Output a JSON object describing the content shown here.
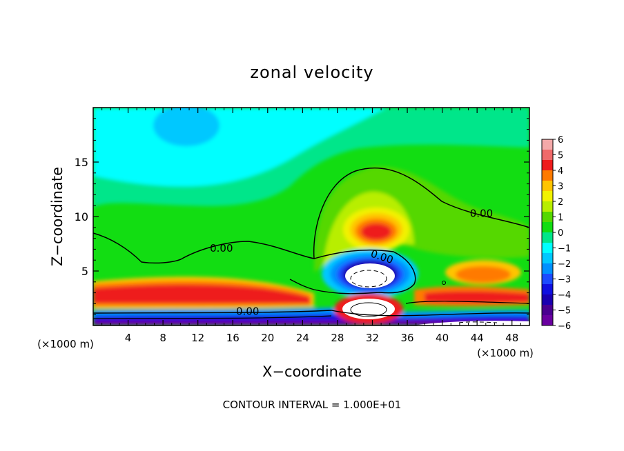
{
  "chart_data": {
    "type": "heatmap",
    "title": "zonal velocity",
    "xlabel": "X−coordinate",
    "ylabel": "Z−coordinate",
    "x_units": "(×1000 m)",
    "z_units": "(×1000 m)",
    "xlim": [
      0,
      50
    ],
    "ylim": [
      0,
      20
    ],
    "x_ticks": [
      4,
      8,
      12,
      16,
      20,
      24,
      28,
      32,
      36,
      40,
      44,
      48
    ],
    "y_ticks": [
      5,
      10,
      15
    ],
    "colorbar": {
      "levels": [
        6,
        5,
        4,
        3,
        2,
        1,
        0,
        -1,
        -2,
        -3,
        -4,
        -5,
        -6
      ],
      "labels": [
        "6",
        "5",
        "4",
        "3",
        "2",
        "1",
        "0",
        "−1",
        "−2",
        "−3",
        "−4",
        "−5",
        "−6"
      ],
      "colors": [
        "#f4a9a9",
        "#f06a6a",
        "#ee1c1c",
        "#ff7a00",
        "#ffc400",
        "#f2f200",
        "#b8ee00",
        "#55d800",
        "#12dd12",
        "#00e68a",
        "#00ffff",
        "#00c8ff",
        "#0090ff",
        "#1c4bff",
        "#1010e0",
        "#1a00b0",
        "#4a0090",
        "#6a00a0"
      ]
    },
    "contour_labels": [
      {
        "text": "0.00",
        "x": 14.7,
        "z": 7.1
      },
      {
        "text": "0.00",
        "x": 44.5,
        "z": 10.3
      },
      {
        "text": "0.00",
        "x": 33.1,
        "z": 6.3
      },
      {
        "text": "0.00",
        "x": 17.7,
        "z": 1.3
      }
    ],
    "footer": "CONTOUR INTERVAL = 1.000E+01"
  }
}
